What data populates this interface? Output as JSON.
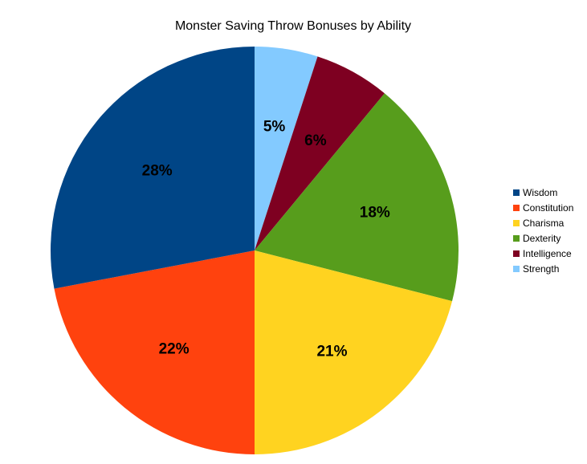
{
  "chart_data": {
    "type": "pie",
    "title": "Monster Saving Throw Bonuses by Ability",
    "legend_position": "right",
    "slices": [
      {
        "name": "Strength",
        "value": 5,
        "label": "5%",
        "color": "#83caff"
      },
      {
        "name": "Intelligence",
        "value": 6,
        "label": "6%",
        "color": "#7e0021"
      },
      {
        "name": "Dexterity",
        "value": 18,
        "label": "18%",
        "color": "#579d1c"
      },
      {
        "name": "Charisma",
        "value": 21,
        "label": "21%",
        "color": "#ffd320"
      },
      {
        "name": "Constitution",
        "value": 22,
        "label": "22%",
        "color": "#ff420e"
      },
      {
        "name": "Wisdom",
        "value": 28,
        "label": "28%",
        "color": "#004586"
      }
    ],
    "legend_order": [
      "Wisdom",
      "Constitution",
      "Charisma",
      "Dexterity",
      "Intelligence",
      "Strength"
    ]
  }
}
